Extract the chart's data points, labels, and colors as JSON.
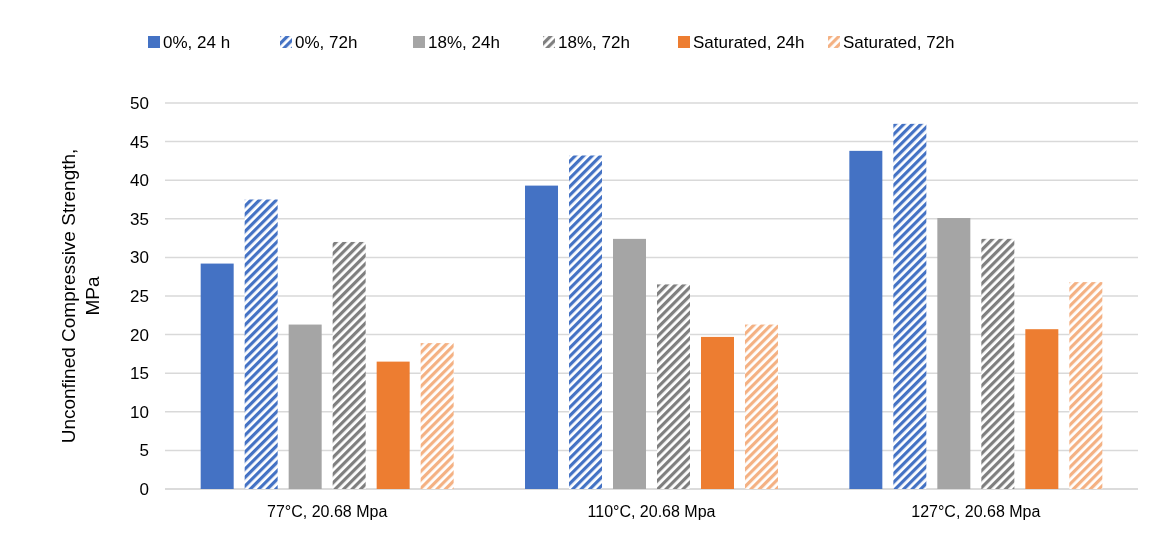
{
  "chart_data": {
    "type": "bar",
    "ylabel": "Unconfined Compressive Strength, MPa",
    "categories": [
      "77°C, 20.68 Mpa",
      "110°C, 20.68 Mpa",
      "127°C, 20.68 Mpa"
    ],
    "series": [
      {
        "name": "0%, 24 h",
        "color": "#4472c4",
        "values": [
          29.2,
          39.3,
          43.8
        ]
      },
      {
        "name": "0%, 72h",
        "color": "#4472c4",
        "values": [
          37.5,
          43.2,
          47.3
        ]
      },
      {
        "name": "18%, 24h",
        "color": "#a5a5a5",
        "values": [
          21.3,
          32.4,
          35.1
        ]
      },
      {
        "name": "18%, 72h",
        "color": "#7f7f7f",
        "values": [
          32.0,
          26.5,
          32.4
        ]
      },
      {
        "name": "Saturated, 24h",
        "color": "#ed7d31",
        "values": [
          16.5,
          19.7,
          20.7
        ]
      },
      {
        "name": "Saturated, 72h",
        "color": "#f4b183",
        "values": [
          18.9,
          21.3,
          26.8
        ]
      }
    ],
    "ylim": [
      0,
      50
    ],
    "yticks": [
      0,
      5,
      10,
      15,
      20,
      25,
      30,
      35,
      40,
      45,
      50
    ],
    "grid": "y",
    "legend": "top"
  }
}
